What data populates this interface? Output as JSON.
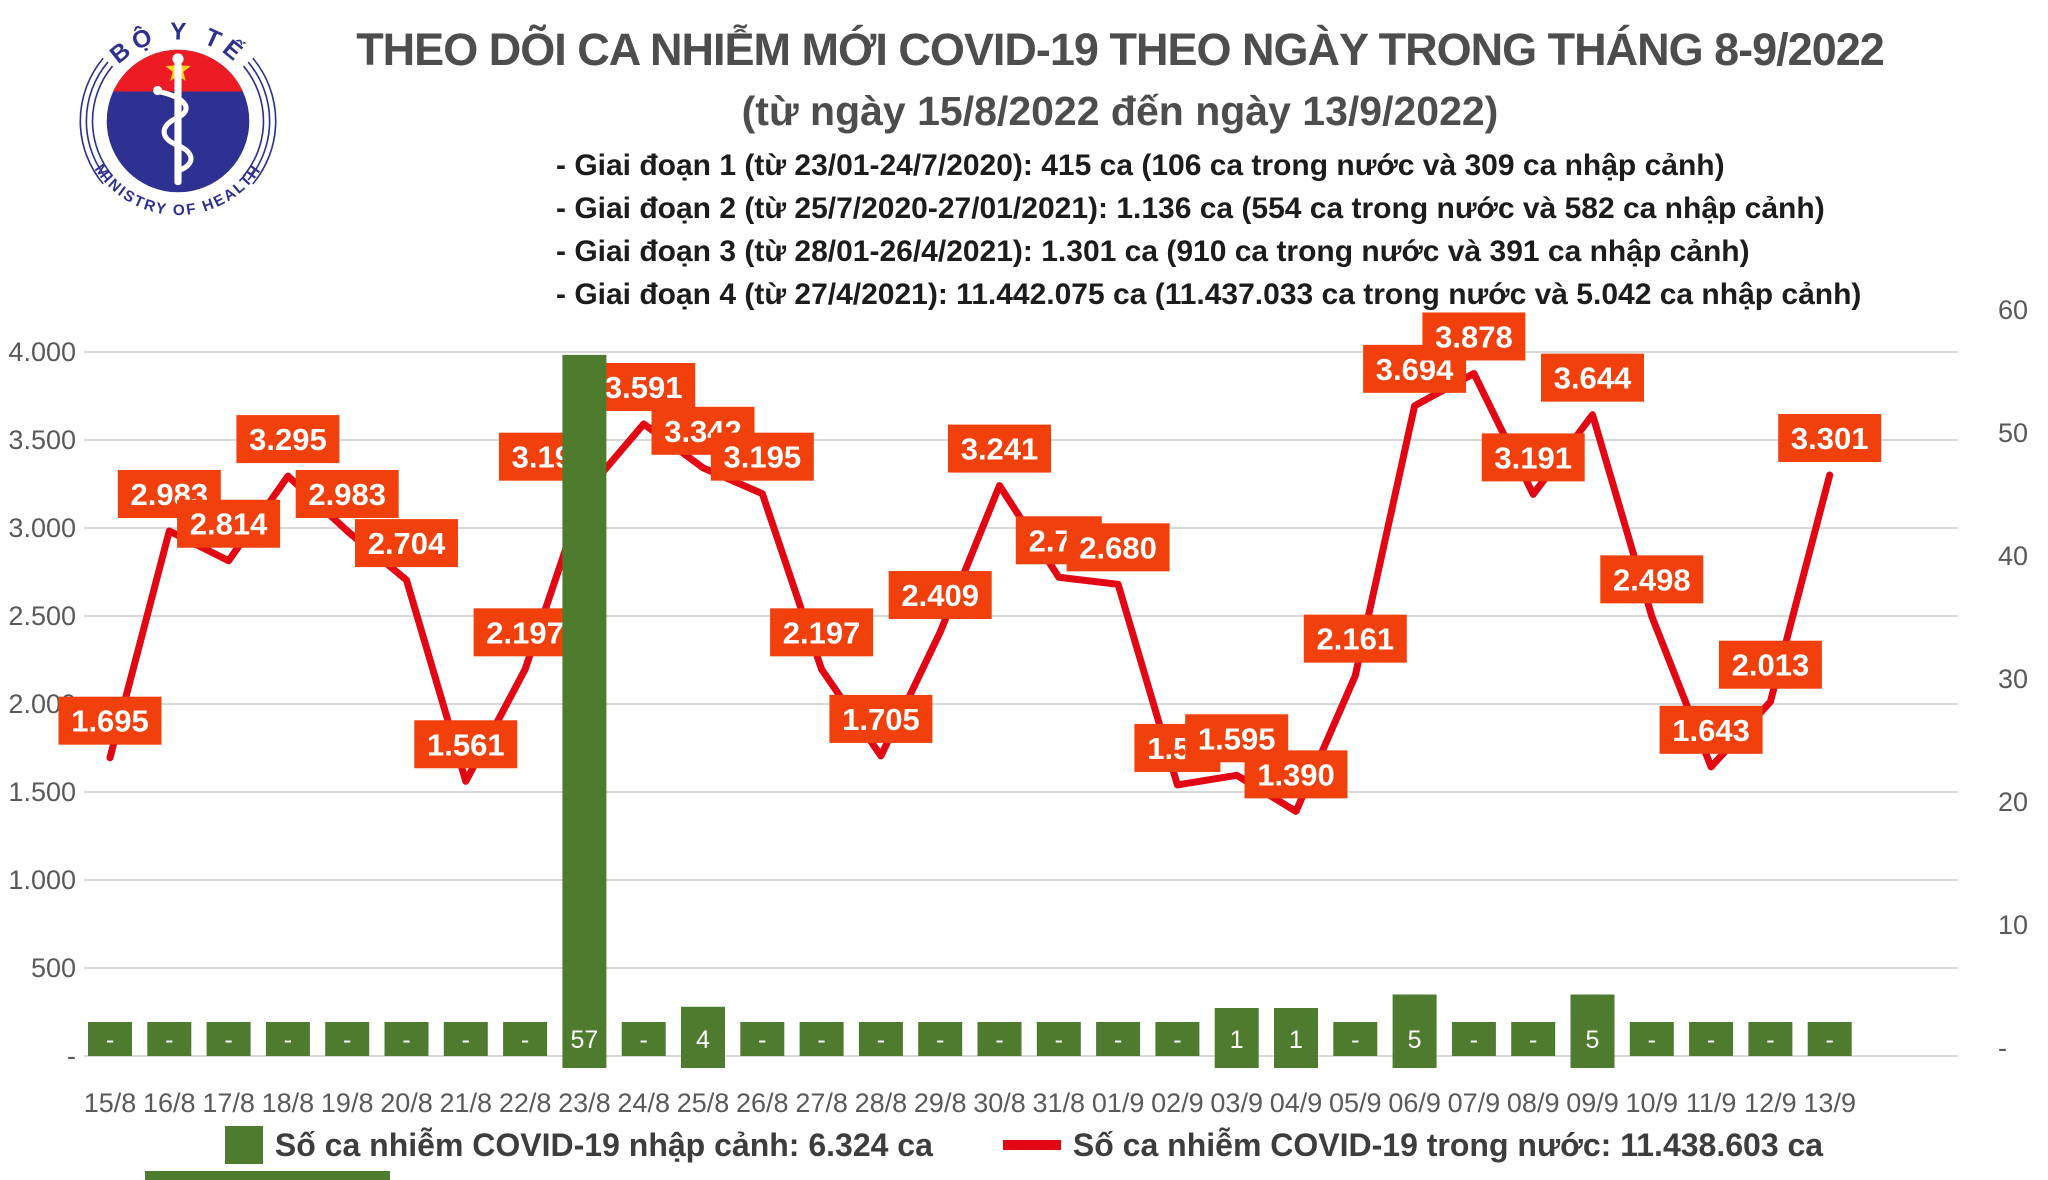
{
  "logo": {
    "top_text": "BỘ Y TẾ",
    "bottom_text": "MINISTRY OF HEALTH",
    "colors": {
      "blue": "#2e3192",
      "red": "#ed1c24",
      "star": "#ffd520"
    }
  },
  "header": {
    "title": "THEO DÕI CA NHIỄM MỚI COVID-19 THEO NGÀY TRONG THÁNG 8-9/2022",
    "subtitle": "(từ ngày 15/8/2022 đến ngày 13/9/2022)",
    "bullets": [
      "- Giai đoạn 1 (từ 23/01-24/7/2020): 415 ca (106 ca trong nước và 309 ca nhập cảnh)",
      "- Giai đoạn 2 (từ 25/7/2020-27/01/2021): 1.136 ca (554 ca trong nước và 582 ca nhập cảnh)",
      "- Giai đoạn 3 (từ 28/01-26/4/2021): 1.301 ca (910 ca trong nước và 391 ca nhập cảnh)",
      "- Giai đoạn 4 (từ 27/4/2021): 11.442.075 ca (11.437.033 ca trong nước và 5.042 ca nhập cảnh)"
    ]
  },
  "chart_data": {
    "type": "line+bar",
    "categories": [
      "15/8",
      "16/8",
      "17/8",
      "18/8",
      "19/8",
      "20/8",
      "21/8",
      "22/8",
      "23/8",
      "24/8",
      "25/8",
      "26/8",
      "27/8",
      "28/8",
      "29/8",
      "30/8",
      "31/8",
      "01/9",
      "02/9",
      "03/9",
      "04/9",
      "05/9",
      "06/9",
      "07/9",
      "08/9",
      "09/9",
      "10/9",
      "11/9",
      "12/9",
      "13/9"
    ],
    "series": [
      {
        "name": "Số ca nhiễm COVID-19 nhập cảnh: 6.324 ca",
        "type": "bar",
        "axis": "right",
        "color": "#4f7b2f",
        "values": [
          0,
          0,
          0,
          0,
          0,
          0,
          0,
          0,
          57,
          0,
          4,
          0,
          0,
          0,
          0,
          0,
          0,
          0,
          0,
          1,
          1,
          0,
          5,
          0,
          0,
          5,
          0,
          0,
          0,
          0
        ],
        "labels": [
          "-",
          "-",
          "-",
          "-",
          "-",
          "-",
          "-",
          "-",
          "57",
          "-",
          "4",
          "-",
          "-",
          "-",
          "-",
          "-",
          "-",
          "-",
          "-",
          "1",
          "1",
          "-",
          "5",
          "-",
          "-",
          "5",
          "-",
          "-",
          "-",
          "-"
        ]
      },
      {
        "name": "Số ca nhiễm COVID-19 trong nước: 11.438.603 ca",
        "type": "line",
        "axis": "left",
        "color": "#e30613",
        "label_box_color": "#f2400c",
        "values": [
          1695,
          2983,
          2814,
          3295,
          2983,
          2704,
          1561,
          2197,
          3195,
          3591,
          3342,
          3195,
          2197,
          1705,
          2409,
          3241,
          2720,
          2680,
          1540,
          1595,
          1390,
          2161,
          3694,
          3878,
          3191,
          3644,
          2498,
          1643,
          2013,
          3301
        ],
        "labels": [
          "1.695",
          "2.983",
          "2.814",
          "3.295",
          "2.983",
          "2.704",
          "1.561",
          "2.197",
          "3.195",
          "3.591",
          "3.342",
          "3.195",
          "2.197",
          "1.705",
          "2.409",
          "3.241",
          "2.72",
          "2.680",
          "1.54",
          "1.595",
          "1.390",
          "2.161",
          "3.694",
          "3.878",
          "3.191",
          "3.644",
          "2.498",
          "1.643",
          "2.013",
          "3.301"
        ]
      }
    ],
    "left_axis": {
      "min": 0,
      "max": 4000,
      "ticks": [
        "4.000",
        "3.500",
        "3.000",
        "2.500",
        "2.000",
        "1.500",
        "1.000",
        "500",
        "-"
      ]
    },
    "right_axis": {
      "min": 0,
      "max": 60,
      "ticks": [
        "60",
        "50",
        "40",
        "30",
        "20",
        "10",
        "-"
      ]
    },
    "grid": true,
    "grid_color": "#d9d9d9",
    "legend_position": "bottom"
  }
}
